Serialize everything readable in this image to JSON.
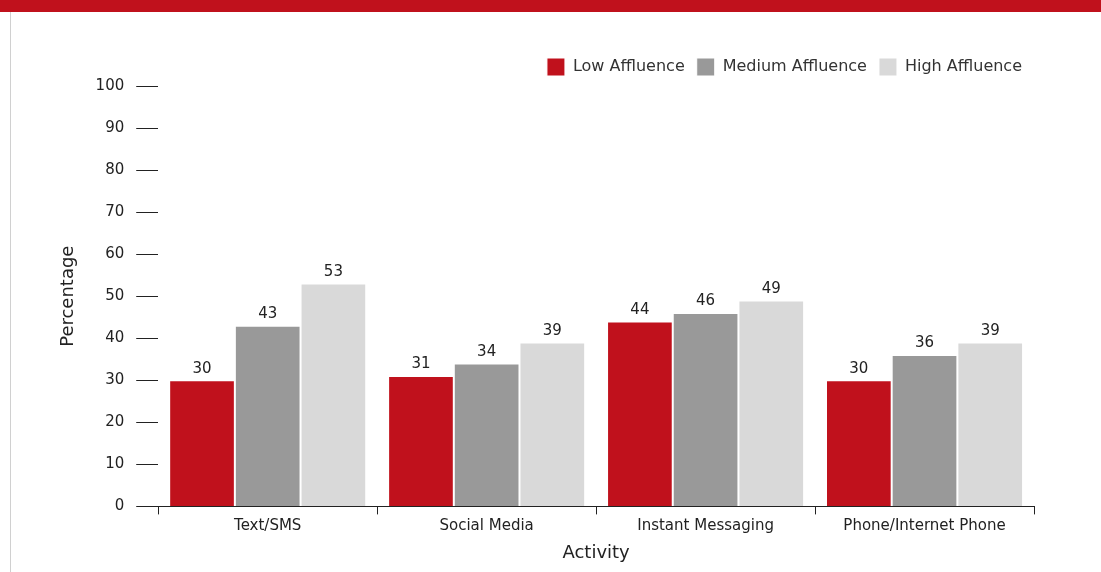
{
  "chart_data": {
    "type": "bar",
    "xlabel": "Activity",
    "ylabel": "Percentage",
    "categories": [
      "Text/SMS",
      "Social Media",
      "Instant Messaging",
      "Phone/Internet Phone"
    ],
    "series": [
      {
        "name": "Low Affluence",
        "color": "#c0111c",
        "values": [
          30,
          31,
          44,
          30
        ]
      },
      {
        "name": "Medium Affluence",
        "color": "#999999",
        "values": [
          43,
          34,
          46,
          36
        ]
      },
      {
        "name": "High Affluence",
        "color": "#d9d9d9",
        "values": [
          53,
          39,
          49,
          39
        ]
      }
    ],
    "ylim": [
      0,
      100
    ],
    "yticks": [
      0,
      10,
      20,
      30,
      40,
      50,
      60,
      70,
      80,
      90,
      100
    ],
    "grid": false,
    "legend": "top right",
    "data_labels": true
  }
}
